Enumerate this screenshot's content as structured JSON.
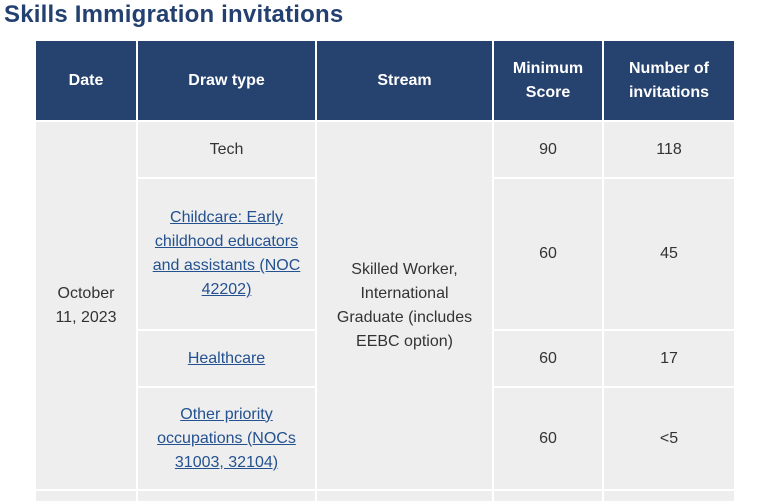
{
  "title": "Skills Immigration invitations",
  "headers": {
    "date": "Date",
    "draw_type": "Draw type",
    "stream": "Stream",
    "min_score": "Minimum Score",
    "invitations": "Number of invitations"
  },
  "date": "October 11, 2023",
  "stream": "Skilled Worker, International Graduate (includes EEBC option)",
  "rows": [
    {
      "draw_type": "Tech",
      "is_link": false,
      "min_score": "90",
      "invitations": "118"
    },
    {
      "draw_type": "Childcare: Early childhood educators and assistants (NOC 42202)",
      "is_link": true,
      "min_score": "60",
      "invitations": "45"
    },
    {
      "draw_type": "Healthcare",
      "is_link": true,
      "min_score": "60",
      "invitations": "17"
    },
    {
      "draw_type": "Other priority occupations (NOCs 31003, 32104)",
      "is_link": true,
      "min_score": "60",
      "invitations": "<5"
    }
  ]
}
